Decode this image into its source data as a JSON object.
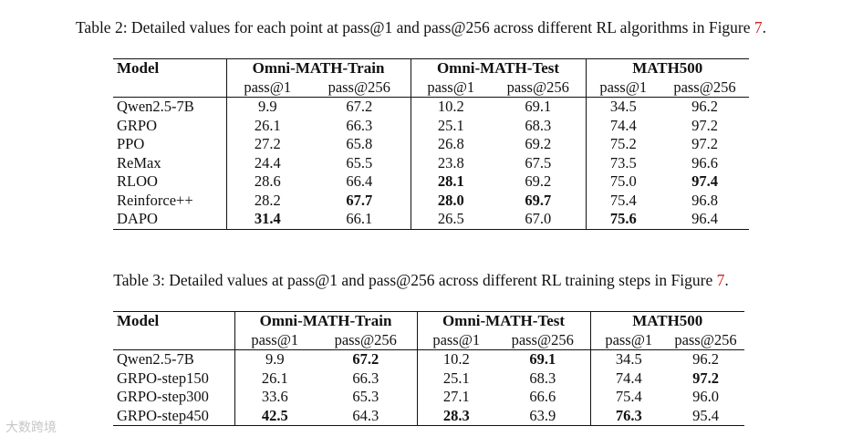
{
  "table2": {
    "caption_prefix": "Table 2:  Detailed values for each point at pass@1 and pass@256 across different RL algorithms in Figure ",
    "caption_ref": "7",
    "caption_suffix": ".",
    "model_header": "Model",
    "groups": [
      "Omni-MATH-Train",
      "Omni-MATH-Test",
      "MATH500"
    ],
    "metrics": [
      "pass@1",
      "pass@256"
    ],
    "rows": [
      {
        "model": "Qwen2.5-7B",
        "values": [
          "9.9",
          "67.2",
          "10.2",
          "69.1",
          "34.5",
          "96.2"
        ],
        "bold": []
      },
      {
        "model": "GRPO",
        "values": [
          "26.1",
          "66.3",
          "25.1",
          "68.3",
          "74.4",
          "97.2"
        ],
        "bold": []
      },
      {
        "model": "PPO",
        "values": [
          "27.2",
          "65.8",
          "26.8",
          "69.2",
          "75.2",
          "97.2"
        ],
        "bold": []
      },
      {
        "model": "ReMax",
        "values": [
          "24.4",
          "65.5",
          "23.8",
          "67.5",
          "73.5",
          "96.6"
        ],
        "bold": []
      },
      {
        "model": "RLOO",
        "values": [
          "28.6",
          "66.4",
          "28.1",
          "69.2",
          "75.0",
          "97.4"
        ],
        "bold": [
          2,
          5
        ]
      },
      {
        "model": "Reinforce++",
        "values": [
          "28.2",
          "67.7",
          "28.0",
          "69.7",
          "75.4",
          "96.8"
        ],
        "bold": [
          1,
          2,
          3
        ]
      },
      {
        "model": "DAPO",
        "values": [
          "31.4",
          "66.1",
          "26.5",
          "67.0",
          "75.6",
          "96.4"
        ],
        "bold": [
          0,
          4
        ]
      }
    ]
  },
  "table3": {
    "caption_prefix": "Table 3:  Detailed values at pass@1 and pass@256 across different RL training steps in Figure ",
    "caption_ref": "7",
    "caption_suffix": ".",
    "model_header": "Model",
    "groups": [
      "Omni-MATH-Train",
      "Omni-MATH-Test",
      "MATH500"
    ],
    "metrics": [
      "pass@1",
      "pass@256"
    ],
    "rows": [
      {
        "model": "Qwen2.5-7B",
        "values": [
          "9.9",
          "67.2",
          "10.2",
          "69.1",
          "34.5",
          "96.2"
        ],
        "bold": [
          1,
          3
        ]
      },
      {
        "model": "GRPO-step150",
        "values": [
          "26.1",
          "66.3",
          "25.1",
          "68.3",
          "74.4",
          "97.2"
        ],
        "bold": [
          5
        ]
      },
      {
        "model": "GRPO-step300",
        "values": [
          "33.6",
          "65.3",
          "27.1",
          "66.6",
          "75.4",
          "96.0"
        ],
        "bold": []
      },
      {
        "model": "GRPO-step450",
        "values": [
          "42.5",
          "64.3",
          "28.3",
          "63.9",
          "76.3",
          "95.4"
        ],
        "bold": [
          0,
          2,
          4
        ]
      }
    ]
  },
  "watermark": "大数跨境",
  "colors": {
    "link": "#d42020",
    "text": "#111111",
    "watermark": "#c7c7c7"
  }
}
